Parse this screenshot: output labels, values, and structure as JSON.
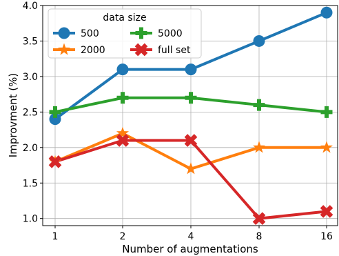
{
  "chart_data": {
    "type": "line",
    "title": "",
    "xlabel": "Number of augmentations",
    "ylabel": "Improvment (%)",
    "categories": [
      "1",
      "2",
      "4",
      "8",
      "16"
    ],
    "ylim": [
      0.9,
      4.0
    ],
    "yticks": [
      "1.0",
      "1.5",
      "2.0",
      "2.5",
      "3.0",
      "3.5",
      "4.0"
    ],
    "grid": true,
    "legend": {
      "title": "data size",
      "placement": "top-left",
      "columns": 2
    },
    "series": [
      {
        "name": "500",
        "values": [
          2.4,
          3.1,
          3.1,
          3.5,
          3.9
        ],
        "color": "#1f77b4",
        "marker": "circle"
      },
      {
        "name": "2000",
        "values": [
          1.8,
          2.2,
          1.7,
          2.0,
          2.0
        ],
        "color": "#ff7f0e",
        "marker": "star"
      },
      {
        "name": "5000",
        "values": [
          2.5,
          2.7,
          2.7,
          2.6,
          2.5
        ],
        "color": "#2ca02c",
        "marker": "plus"
      },
      {
        "name": "full set",
        "values": [
          1.8,
          2.1,
          2.1,
          1.0,
          1.1
        ],
        "color": "#d62728",
        "marker": "x"
      }
    ]
  }
}
